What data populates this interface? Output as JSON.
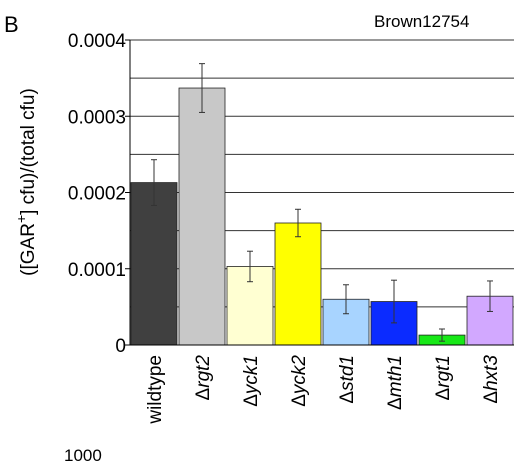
{
  "figure": {
    "panel_label": "B",
    "top_right_label": "Brown12754",
    "bottom_fragment": "1000"
  },
  "chart_data": {
    "type": "bar",
    "title": "",
    "xlabel": "",
    "ylabel": "([GAR+] cfu)/(total cfu)",
    "ylabel_parts": {
      "pre": "([GAR",
      "sup": "+",
      "post": "] cfu)/(total cfu)"
    },
    "ylim": [
      0,
      0.0004
    ],
    "yticks": [
      {
        "value": 0,
        "label": "0"
      },
      {
        "value": 0.0001,
        "label": "0.0001"
      },
      {
        "value": 0.0002,
        "label": "0.0002"
      },
      {
        "value": 0.0003,
        "label": "0.0003"
      },
      {
        "value": 0.0004,
        "label": "0.0004"
      }
    ],
    "gridlines": [
      5e-05,
      0.0001,
      0.00015,
      0.0002,
      0.00025,
      0.0003,
      0.00035,
      0.0004
    ],
    "grid": true,
    "legend": "none",
    "categories": [
      {
        "prefix": "",
        "name": "wildtype",
        "italic": false
      },
      {
        "prefix": "Δ",
        "name": "rgt2",
        "italic": true
      },
      {
        "prefix": "Δ",
        "name": "yck1",
        "italic": true
      },
      {
        "prefix": "Δ",
        "name": "yck2",
        "italic": true
      },
      {
        "prefix": "Δ",
        "name": "std1",
        "italic": true
      },
      {
        "prefix": "Δ",
        "name": "mth1",
        "italic": true
      },
      {
        "prefix": "Δ",
        "name": "rgt1",
        "italic": true
      },
      {
        "prefix": "Δ",
        "name": "hxt3",
        "italic": true
      }
    ],
    "values": [
      0.000213,
      0.000337,
      0.000103,
      0.00016,
      6e-05,
      5.7e-05,
      1.3e-05,
      6.4e-05
    ],
    "errors": [
      3e-05,
      3.2e-05,
      2e-05,
      1.8e-05,
      1.9e-05,
      2.8e-05,
      8e-06,
      2e-05
    ],
    "colors": [
      "#404040",
      "#c8c8c8",
      "#ffffd2",
      "#ffff00",
      "#a8d4ff",
      "#0b2bff",
      "#17e817",
      "#d2a8ff"
    ]
  }
}
